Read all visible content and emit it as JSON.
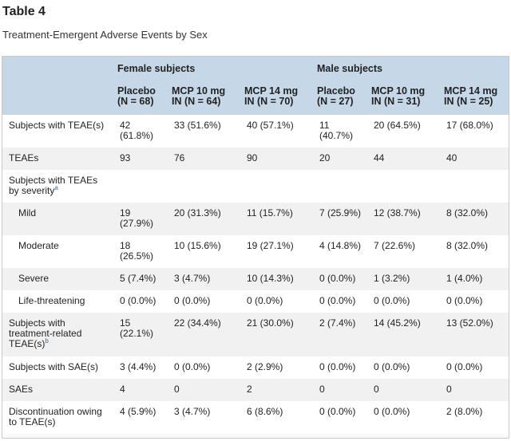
{
  "table_label": "Table 4",
  "caption": "Treatment-Emergent Adverse Events by Sex",
  "groups": [
    "Female subjects",
    "Male subjects"
  ],
  "columns": [
    {
      "line1": "Placebo",
      "line2": "(N = 68)"
    },
    {
      "line1": "MCP 10 mg",
      "line2": "IN (N = 64)"
    },
    {
      "line1": "MCP 14 mg",
      "line2": "IN (N = 70)"
    },
    {
      "line1": "Placebo",
      "line2": "(N = 27)"
    },
    {
      "line1": "MCP 10 mg",
      "line2": "IN (N = 31)"
    },
    {
      "line1": "MCP 14 mg",
      "line2": "IN (N = 25)"
    }
  ],
  "rows": [
    {
      "label": "Subjects with TEAE(s)",
      "sup": "",
      "cells": [
        "42 (61.8%)",
        "33 (51.6%)",
        "40 (57.1%)",
        "11 (40.7%)",
        "20 (64.5%)",
        "17 (68.0%)"
      ]
    },
    {
      "label": "TEAEs",
      "sup": "",
      "cells": [
        "93",
        "76",
        "90",
        "20",
        "44",
        "40"
      ]
    },
    {
      "label": "Subjects with TEAEs by severity",
      "sup": "a",
      "cells": [
        "",
        "",
        "",
        "",
        "",
        ""
      ]
    },
    {
      "label": "Mild",
      "sup": "",
      "cells": [
        "19 (27.9%)",
        "20 (31.3%)",
        "11 (15.7%)",
        "7 (25.9%)",
        "12 (38.7%)",
        "8 (32.0%)"
      ]
    },
    {
      "label": "Moderate",
      "sup": "",
      "cells": [
        "18 (26.5%)",
        "10 (15.6%)",
        "19 (27.1%)",
        "4 (14.8%)",
        "7 (22.6%)",
        "8 (32.0%)"
      ]
    },
    {
      "label": "Severe",
      "sup": "",
      "cells": [
        "5 (7.4%)",
        "3 (4.7%)",
        "10 (14.3%)",
        "0 (0.0%)",
        "1 (3.2%)",
        "1 (4.0%)"
      ]
    },
    {
      "label": "Life-threatening",
      "sup": "",
      "cells": [
        "0 (0.0%)",
        "0 (0.0%)",
        "0 (0.0%)",
        "0 (0.0%)",
        "0 (0.0%)",
        "0 (0.0%)"
      ]
    },
    {
      "label": "Subjects with treatment-related TEAE(s)",
      "sup": "b",
      "cells": [
        "15 (22.1%)",
        "22 (34.4%)",
        "21 (30.0%)",
        "2 (7.4%)",
        "14 (45.2%)",
        "13 (52.0%)"
      ]
    },
    {
      "label": "Subjects with SAE(s)",
      "sup": "",
      "cells": [
        "3 (4.4%)",
        "0 (0.0%)",
        "2 (2.9%)",
        "0 (0.0%)",
        "0 (0.0%)",
        "0 (0.0%)"
      ]
    },
    {
      "label": "SAEs",
      "sup": "",
      "cells": [
        "4",
        "0",
        "2",
        "0",
        "0",
        "0"
      ]
    },
    {
      "label": "Discontinuation owing to TEAE(s)",
      "sup": "",
      "cells": [
        "4 (5.9%)",
        "3 (4.7%)",
        "6 (8.6%)",
        "0 (0.0%)",
        "0 (0.0%)",
        "2 (8.0%)"
      ]
    }
  ]
}
